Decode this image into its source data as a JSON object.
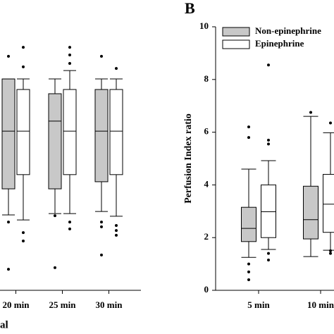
{
  "chart_data": [
    {
      "type": "box",
      "xlabel": "al",
      "categories": [
        "20 min",
        "25 min",
        "30 min"
      ],
      "ylim": [
        0,
        10
      ],
      "series": [
        {
          "color": "#c8c8c8",
          "values": [
            {
              "low": 2.86,
              "q1": 3.85,
              "median": 6.04,
              "q3": 8.02,
              "high": 8.02,
              "outliers": [
                8.88,
                2.59,
                0.8
              ]
            },
            {
              "low": 2.91,
              "q1": 3.85,
              "median": 6.42,
              "q3": 7.46,
              "high": 8.02,
              "outliers": [
                2.83,
                0.86
              ]
            },
            {
              "low": 2.99,
              "q1": 4.12,
              "median": 6.04,
              "q3": 7.62,
              "high": 8.02,
              "outliers": [
                8.88,
                2.59,
                2.41,
                1.34
              ]
            }
          ]
        },
        {
          "color": "#ffffff",
          "values": [
            {
              "low": 2.67,
              "q1": 4.39,
              "median": 6.04,
              "q3": 7.62,
              "high": 8.02,
              "outliers": [
                9.22,
                8.48,
                2.19,
                1.87
              ]
            },
            {
              "low": 2.91,
              "q1": 4.39,
              "median": 6.04,
              "q3": 7.62,
              "high": 8.34,
              "outliers": [
                9.22,
                8.93,
                8.61,
                2.59,
                2.33
              ]
            },
            {
              "low": 2.81,
              "q1": 4.39,
              "median": 6.04,
              "q3": 7.62,
              "high": 8.02,
              "outliers": [
                8.42,
                2.46,
                2.27,
                2.09
              ]
            }
          ]
        }
      ]
    },
    {
      "type": "box",
      "panel_label": "B",
      "ylabel": "Perfusion Index ratio",
      "categories": [
        "5 min",
        "10 min"
      ],
      "ylim": [
        0,
        10
      ],
      "yticks": [
        0,
        2,
        4,
        6,
        8,
        10
      ],
      "legend": "upper left",
      "series": [
        {
          "name": "Non-epinephrine",
          "color": "#c8c8c8",
          "values": [
            {
              "low": 1.25,
              "q1": 1.85,
              "median": 2.35,
              "q3": 3.15,
              "high": 4.6,
              "outliers": [
                6.2,
                5.8,
                1.0,
                0.7,
                0.4
              ]
            },
            {
              "low": 1.28,
              "q1": 1.95,
              "median": 2.68,
              "q3": 3.95,
              "high": 6.6,
              "outliers": [
                6.75
              ]
            }
          ]
        },
        {
          "name": "Epinephrine",
          "color": "#ffffff",
          "values": [
            {
              "low": 1.55,
              "q1": 2.0,
              "median": 2.98,
              "q3": 4.0,
              "high": 4.92,
              "outliers": [
                8.55,
                5.7,
                5.55,
                1.4,
                1.15
              ]
            },
            {
              "low": 1.52,
              "q1": 2.2,
              "median": 3.27,
              "q3": 4.4,
              "high": 5.98,
              "outliers": [
                6.35,
                1.5,
                1.4
              ]
            }
          ]
        }
      ]
    }
  ]
}
